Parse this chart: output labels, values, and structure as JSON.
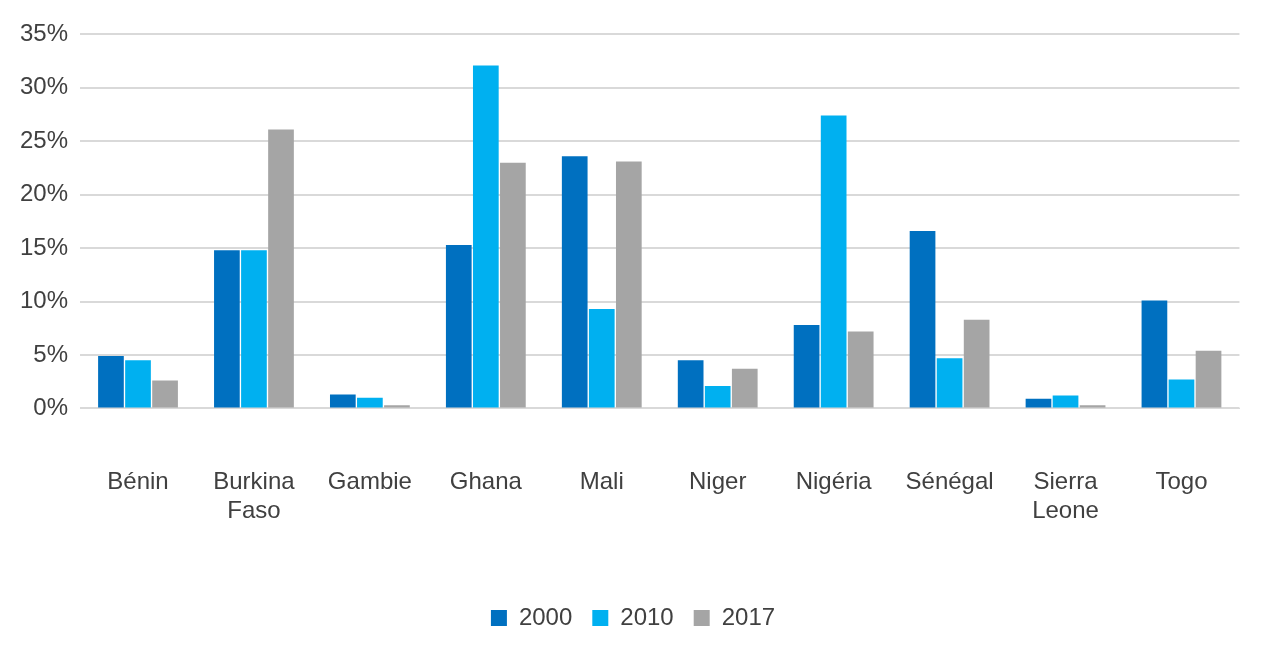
{
  "chart_data": {
    "type": "bar",
    "categories": [
      "Bénin",
      "Burkina Faso",
      "Gambie",
      "Ghana",
      "Mali",
      "Niger",
      "Nigéria",
      "Sénégal",
      "Sierra Leone",
      "Togo"
    ],
    "series": [
      {
        "name": "2000",
        "color": "#0070c0",
        "values": [
          4.9,
          14.8,
          1.3,
          15.3,
          23.6,
          4.5,
          7.8,
          16.6,
          0.9,
          10.1
        ]
      },
      {
        "name": "2010",
        "color": "#00b0f0",
        "values": [
          4.5,
          14.8,
          1.0,
          32.1,
          9.3,
          2.1,
          27.4,
          4.7,
          1.2,
          2.7
        ]
      },
      {
        "name": "2017",
        "color": "#a5a5a5",
        "values": [
          2.6,
          26.1,
          0.3,
          23.0,
          23.1,
          3.7,
          7.2,
          8.3,
          0.3,
          5.4
        ]
      }
    ],
    "ylim": [
      0,
      35
    ],
    "yticks": [
      {
        "value": 0,
        "label": "0%"
      },
      {
        "value": 5,
        "label": "5%"
      },
      {
        "value": 10,
        "label": "10%"
      },
      {
        "value": 15,
        "label": "15%"
      },
      {
        "value": 20,
        "label": "20%"
      },
      {
        "value": 25,
        "label": "25%"
      },
      {
        "value": 30,
        "label": "30%"
      },
      {
        "value": 35,
        "label": "35%"
      }
    ],
    "grid": "y",
    "legend": "bottom"
  }
}
